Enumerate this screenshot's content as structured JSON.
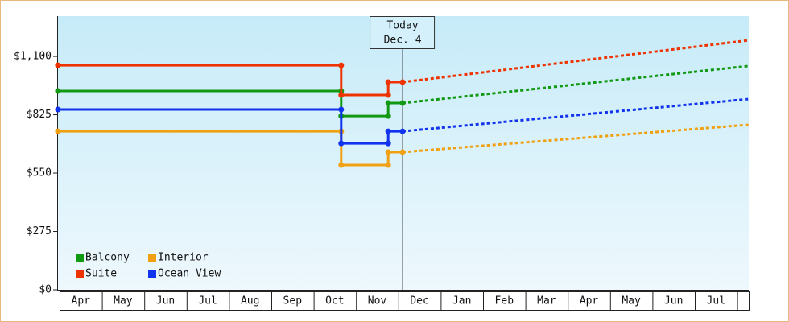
{
  "chart_data": {
    "type": "step-line",
    "months": [
      "Apr",
      "May",
      "Jun",
      "Jul",
      "Aug",
      "Sep",
      "Oct",
      "Nov",
      "Dec",
      "Jan",
      "Feb",
      "Mar",
      "Apr",
      "May",
      "Jun",
      "Jul"
    ],
    "xlim": [
      -0.04,
      16.27
    ],
    "ylim": [
      0,
      1290
    ],
    "yticks": [
      {
        "value": 0,
        "label": "$0"
      },
      {
        "value": 275,
        "label": "$275"
      },
      {
        "value": 550,
        "label": "$550"
      },
      {
        "value": 825,
        "label": "$825"
      },
      {
        "value": 1100,
        "label": "$1,100"
      }
    ],
    "today": {
      "x": 8.1,
      "label": "Today",
      "date": "Dec. 4"
    },
    "series": [
      {
        "name": "Balcony",
        "color": "#119911",
        "x": [
          -0.04,
          6.65,
          6.65,
          7.76,
          7.76,
          8.1
        ],
        "values": [
          937,
          937,
          819,
          819,
          880,
          880
        ],
        "forecast_x": [
          8.1,
          16.27
        ],
        "forecast_values": [
          880,
          1055
        ]
      },
      {
        "name": "Suite",
        "color": "#ee3300",
        "x": [
          -0.04,
          6.65,
          6.65,
          7.76,
          7.76,
          8.1
        ],
        "values": [
          1058,
          1058,
          918,
          918,
          979,
          979
        ],
        "forecast_x": [
          8.1,
          16.27
        ],
        "forecast_values": [
          979,
          1176
        ]
      },
      {
        "name": "Interior",
        "color": "#f0a010",
        "x": [
          -0.04,
          6.65,
          6.65,
          7.76,
          7.76,
          8.1
        ],
        "values": [
          747,
          747,
          588,
          588,
          649,
          649
        ],
        "forecast_x": [
          8.1,
          16.27
        ],
        "forecast_values": [
          649,
          778
        ]
      },
      {
        "name": "Ocean View",
        "color": "#1133ee",
        "x": [
          -0.04,
          6.65,
          6.65,
          7.76,
          7.76,
          8.1
        ],
        "values": [
          850,
          850,
          690,
          690,
          747,
          747
        ],
        "forecast_x": [
          8.1,
          16.27
        ],
        "forecast_values": [
          747,
          899
        ]
      }
    ]
  }
}
